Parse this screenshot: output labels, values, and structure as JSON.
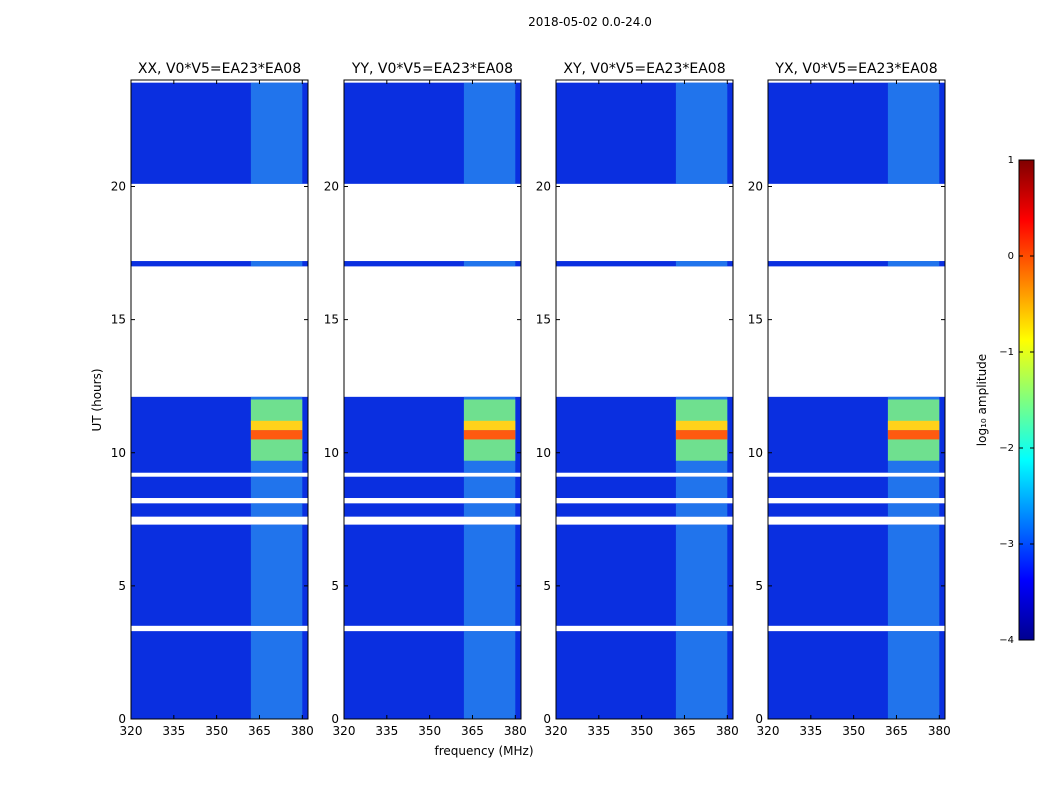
{
  "figure_title": "2018-05-02 0.0-24.0",
  "chart_data": {
    "type": "heatmap",
    "title": "2018-05-02 0.0-24.0",
    "xlabel": "frequency (MHz)",
    "ylabel": "UT (hours)",
    "xlim": [
      320,
      382
    ],
    "ylim": [
      0,
      24
    ],
    "x_ticks": [
      "320",
      "335",
      "350",
      "365",
      "380"
    ],
    "y_ticks": [
      "0",
      "5",
      "10",
      "15",
      "20"
    ],
    "panels": [
      {
        "title": "XX, V0*V5=EA23*EA08",
        "pol": "XX"
      },
      {
        "title": "YY, V0*V5=EA23*EA08",
        "pol": "YY"
      },
      {
        "title": "XY, V0*V5=EA23*EA08",
        "pol": "XY"
      },
      {
        "title": "YX, V0*V5=EA23*EA08",
        "pol": "YX"
      }
    ],
    "data_segments_ut": [
      [
        0,
        3.3
      ],
      [
        3.5,
        7.3
      ],
      [
        7.6,
        8.1
      ],
      [
        8.3,
        9.1
      ],
      [
        9.25,
        12.1
      ],
      [
        17.0,
        17.2
      ],
      [
        20.1,
        23.9
      ]
    ],
    "rfi_band_mhz": [
      362,
      380
    ],
    "rfi_strong_ut": [
      10.5,
      11.2
    ],
    "colorbar": {
      "label": "log₁₀ amplitude",
      "min": -4,
      "max": 1,
      "ticks": [
        "1",
        "0",
        "−1",
        "−2",
        "−3",
        "−4"
      ],
      "colormap": "jet"
    }
  }
}
